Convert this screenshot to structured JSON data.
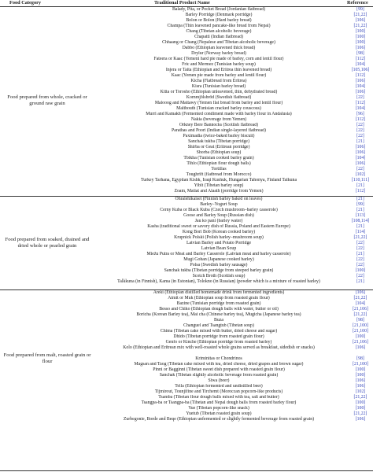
{
  "header": {
    "col_category": "Food Category",
    "col_product": "Traditional Product Name",
    "col_reference": "Reference"
  },
  "sections": [
    {
      "category": "Food prepared from whole, cracked or ground raw grain",
      "rows": [
        {
          "product": "Balady, Pita, or Pocket Bread (Jordanian flatbread)",
          "ref": "[99]"
        },
        {
          "product": "Barley Porridge (Denmark porridge)",
          "ref": "[21,22]"
        },
        {
          "product": "Bolon or Bolon (Hard barley bread)",
          "ref": "[106]"
        },
        {
          "product": "Champa (Thin leavened pancake-like bread from Nepal)",
          "ref": "[21,22]"
        },
        {
          "product": "Chang (Tibetan alcoholic beverage)",
          "ref": "[100]"
        },
        {
          "product": "Chapatti (Indian flatbread)",
          "ref": "[100]"
        },
        {
          "product": "Chhaang or Chang (Nepalese and Tibetan alcoholic beverage)",
          "ref": "[100]"
        },
        {
          "product": "Dabbo (Ethiopian leavened thick bread)",
          "ref": "[106]"
        },
        {
          "product": "Drylur (Norway barley bread)",
          "ref": "[98]"
        },
        {
          "product": "Fateera or Kaac (Yemeni hard pie made of barley, corn and lentil flour)",
          "ref": "[112]"
        },
        {
          "product": "Fric and Mermez (Tunisian barley soup)",
          "ref": "[104]"
        },
        {
          "product": "Injera or Taita (Ethiopian and Eritrea thin leavened bread)",
          "ref": "[105,106]"
        },
        {
          "product": "Kaac (Yemen pie made from barley and lentil flour)",
          "ref": "[112]"
        },
        {
          "product": "Kicha (Flatbread from Eritrea)",
          "ref": "[106]"
        },
        {
          "product": "Kisra (Tunisian barley bread)",
          "ref": "[104]"
        },
        {
          "product": "Kitta or Torosho (Ethiopian unleavened, thin, dehydrated bread)",
          "ref": "[106]"
        },
        {
          "product": "Kornmjölsbröd (Swedish flatbread)",
          "ref": "[22]"
        },
        {
          "product": "Malooog and Mattawy (Yemen flat bread from barley and lentil flour)",
          "ref": "[112]"
        },
        {
          "product": "Malthouth (Tunisian cracked barley couscous)",
          "ref": "[104]"
        },
        {
          "product": "Murri and Kamakh (Fermented condiment made with barley flour in Andalusia)",
          "ref": "[96]"
        },
        {
          "product": "Nakia (beverage from Yemen)",
          "ref": "[112]"
        },
        {
          "product": "Orkney Bere Bannocks (Scottish flatbread)",
          "ref": "[22]"
        },
        {
          "product": "Parathas and Poori (Indian single-layered flatbread)",
          "ref": "[22]"
        },
        {
          "product": "Paximadia (twice-baked barley biscuit)",
          "ref": "[22]"
        },
        {
          "product": "Sanchak tukba (Tibetan porridge)",
          "ref": "[21]"
        },
        {
          "product": "Shirba or Geat (Eritrean porridge)",
          "ref": "[106]"
        },
        {
          "product": "Shorba (Ethiopian soup)",
          "ref": "[106]"
        },
        {
          "product": "Tbikha (Tunisian cooked barley grain)",
          "ref": "[104]"
        },
        {
          "product": "Tihlo (Ethiopian flour dough balls)",
          "ref": "[106]"
        },
        {
          "product": "Tortillas",
          "ref": "[22]"
        },
        {
          "product": "Toughrift (flatbread from Morocco)",
          "ref": "[102]"
        },
        {
          "product": "Turkey Tarhana, Egyptian Kishk, Iraqi Kushuk, Hungarian Tahonya, Finland Talkuna",
          "ref": "[110,111]"
        },
        {
          "product": "Yiblt (Tibetan barley soup)",
          "ref": "[21]"
        },
        {
          "product": "Zoam, Matiat and Alaath (porridge from Yemen)",
          "ref": "[112]"
        }
      ]
    },
    {
      "category": "Food prepared from soaked, drained and dried whole or pearled grain",
      "rows": [
        {
          "product": "Ohralehikaiset (Finnish barley baked on leaves)",
          "ref": "[21]"
        },
        {
          "product": "Barley–Yogurt Soup",
          "ref": "[99]"
        },
        {
          "product": "Černy Kuba or Black Kuba (Czech mushroom–barley casserole)",
          "ref": "[21]"
        },
        {
          "product": "Goose and Barley Soup (Russian dish)",
          "ref": "[113]"
        },
        {
          "product": "Jau ko pani (barley water)",
          "ref": "[108,114]"
        },
        {
          "product": "Kasha (traditional sweet or savory dish of Russia, Poland and Eastern Europe)",
          "ref": "[21]"
        },
        {
          "product": "Kong Bori Bob (Korean cooked barley)",
          "ref": "[114]"
        },
        {
          "product": "Krupnick Polski (Polish barley–mushroom soup)",
          "ref": "[21,22]"
        },
        {
          "product": "Latvian Barley and Potato Porridge",
          "ref": "[22]"
        },
        {
          "product": "Latvian Bean Soup",
          "ref": "[22]"
        },
        {
          "product": "Miežu Putra or Meat and Barley Casserole (Latvian meat and barley casserole)",
          "ref": "[21]"
        },
        {
          "product": "Mugi Gohan (Japanese cooked barley)",
          "ref": "[22]"
        },
        {
          "product": "Polsa (Swedish barley sausage)",
          "ref": "[22]"
        },
        {
          "product": "Sanchak tukba (Tibetan porridge from steeped barley grain)",
          "ref": "[100]"
        },
        {
          "product": "Scotch Broth (Scottish soup)",
          "ref": "[22]"
        },
        {
          "product": "Talkkuna (in Finnish), Kama (in Estonian), Tolokno (in Russian) (powder which is a mixture of roasted barley)",
          "ref": "[21]",
          "two": true
        }
      ]
    },
    {
      "category": "Food prepared from malt, roasted grain or flour",
      "rows": [
        {
          "product": "Areki (Ethiopian distilled homemade drink from fermented ingredients)",
          "ref": "[106]"
        },
        {
          "product": "Atmit or Muk (Ethiopian soup from roasted grain flour)",
          "ref": "[21,22]"
        },
        {
          "product": "Bazine (Tunisian porridge from roasted grain)",
          "ref": "[104]"
        },
        {
          "product": "Besso and Chiko (Ethiopian dough balls with water, butter or oil)",
          "ref": "[21,106]"
        },
        {
          "product": "Boricha (Korean Barley tea), Mai cha (Chinese barley tea), Mugicha (Japanese barley tea)",
          "ref": "[21,22]"
        },
        {
          "product": "Buza",
          "ref": "[98]"
        },
        {
          "product": "Changuel and Tsangtub (Tibetan soup)",
          "ref": "[21,100]"
        },
        {
          "product": "Chima (Tibetan cake mixed with butter, dried cheese and sugar)",
          "ref": "[21,100]"
        },
        {
          "product": "Dhido (Tibetan porridge from roasted grain flour)",
          "ref": "[100]"
        },
        {
          "product": "Genfo or Kinche (Ethiopian porridge from roasted barley)",
          "ref": "[21,106]"
        },
        {
          "product": "Kolo (Ethiopian and Eritrean mix with well-roasted whole grains served as breakfast, sidedish or snacks)",
          "ref": "[106]",
          "two": true
        },
        {
          "product": "Kriminitas or Chondrinos",
          "ref": "[98]"
        },
        {
          "product": "Magsan and Taog (Tibetan cake mixed with tea, dried cheese, dried grapes and brown sugar)",
          "ref": "[21,100]"
        },
        {
          "product": "Pinni or Bagginni (Tibetan sweet dish prepared with roasted grain flour)",
          "ref": "[100]"
        },
        {
          "product": "Sanchak (Tibetan slightly alcoholic beverage from roasted grain)",
          "ref": "[100]"
        },
        {
          "product": "Siwa (beer)",
          "ref": "[106]"
        },
        {
          "product": "Tella (Ethiopian fermented and undistilled beer)",
          "ref": "[106]"
        },
        {
          "product": "Tijmirout, Tounjifine and Tirchemt (Moroccan popcorn-like products)",
          "ref": "[102]"
        },
        {
          "product": "Tsamba (Tibetan flour dough balls mixed with tea, salt and butter)",
          "ref": "[21,22]"
        },
        {
          "product": "Tsangpa-ba or Tsangpa-ba (Tibetan and Nepal dough balls from roasted barley flour)",
          "ref": "[100]"
        },
        {
          "product": "Yue (Tibetan popcorn-like snack)",
          "ref": "[100]"
        },
        {
          "product": "Yuetub (Tibetan roasted grain soup)",
          "ref": "[21,22]"
        },
        {
          "product": "Zurbegonie, Borde and Beqe (Ethiopian unfermented or slightly fermented beverage from roasted grain)",
          "ref": "[106]",
          "two": true
        }
      ]
    }
  ]
}
